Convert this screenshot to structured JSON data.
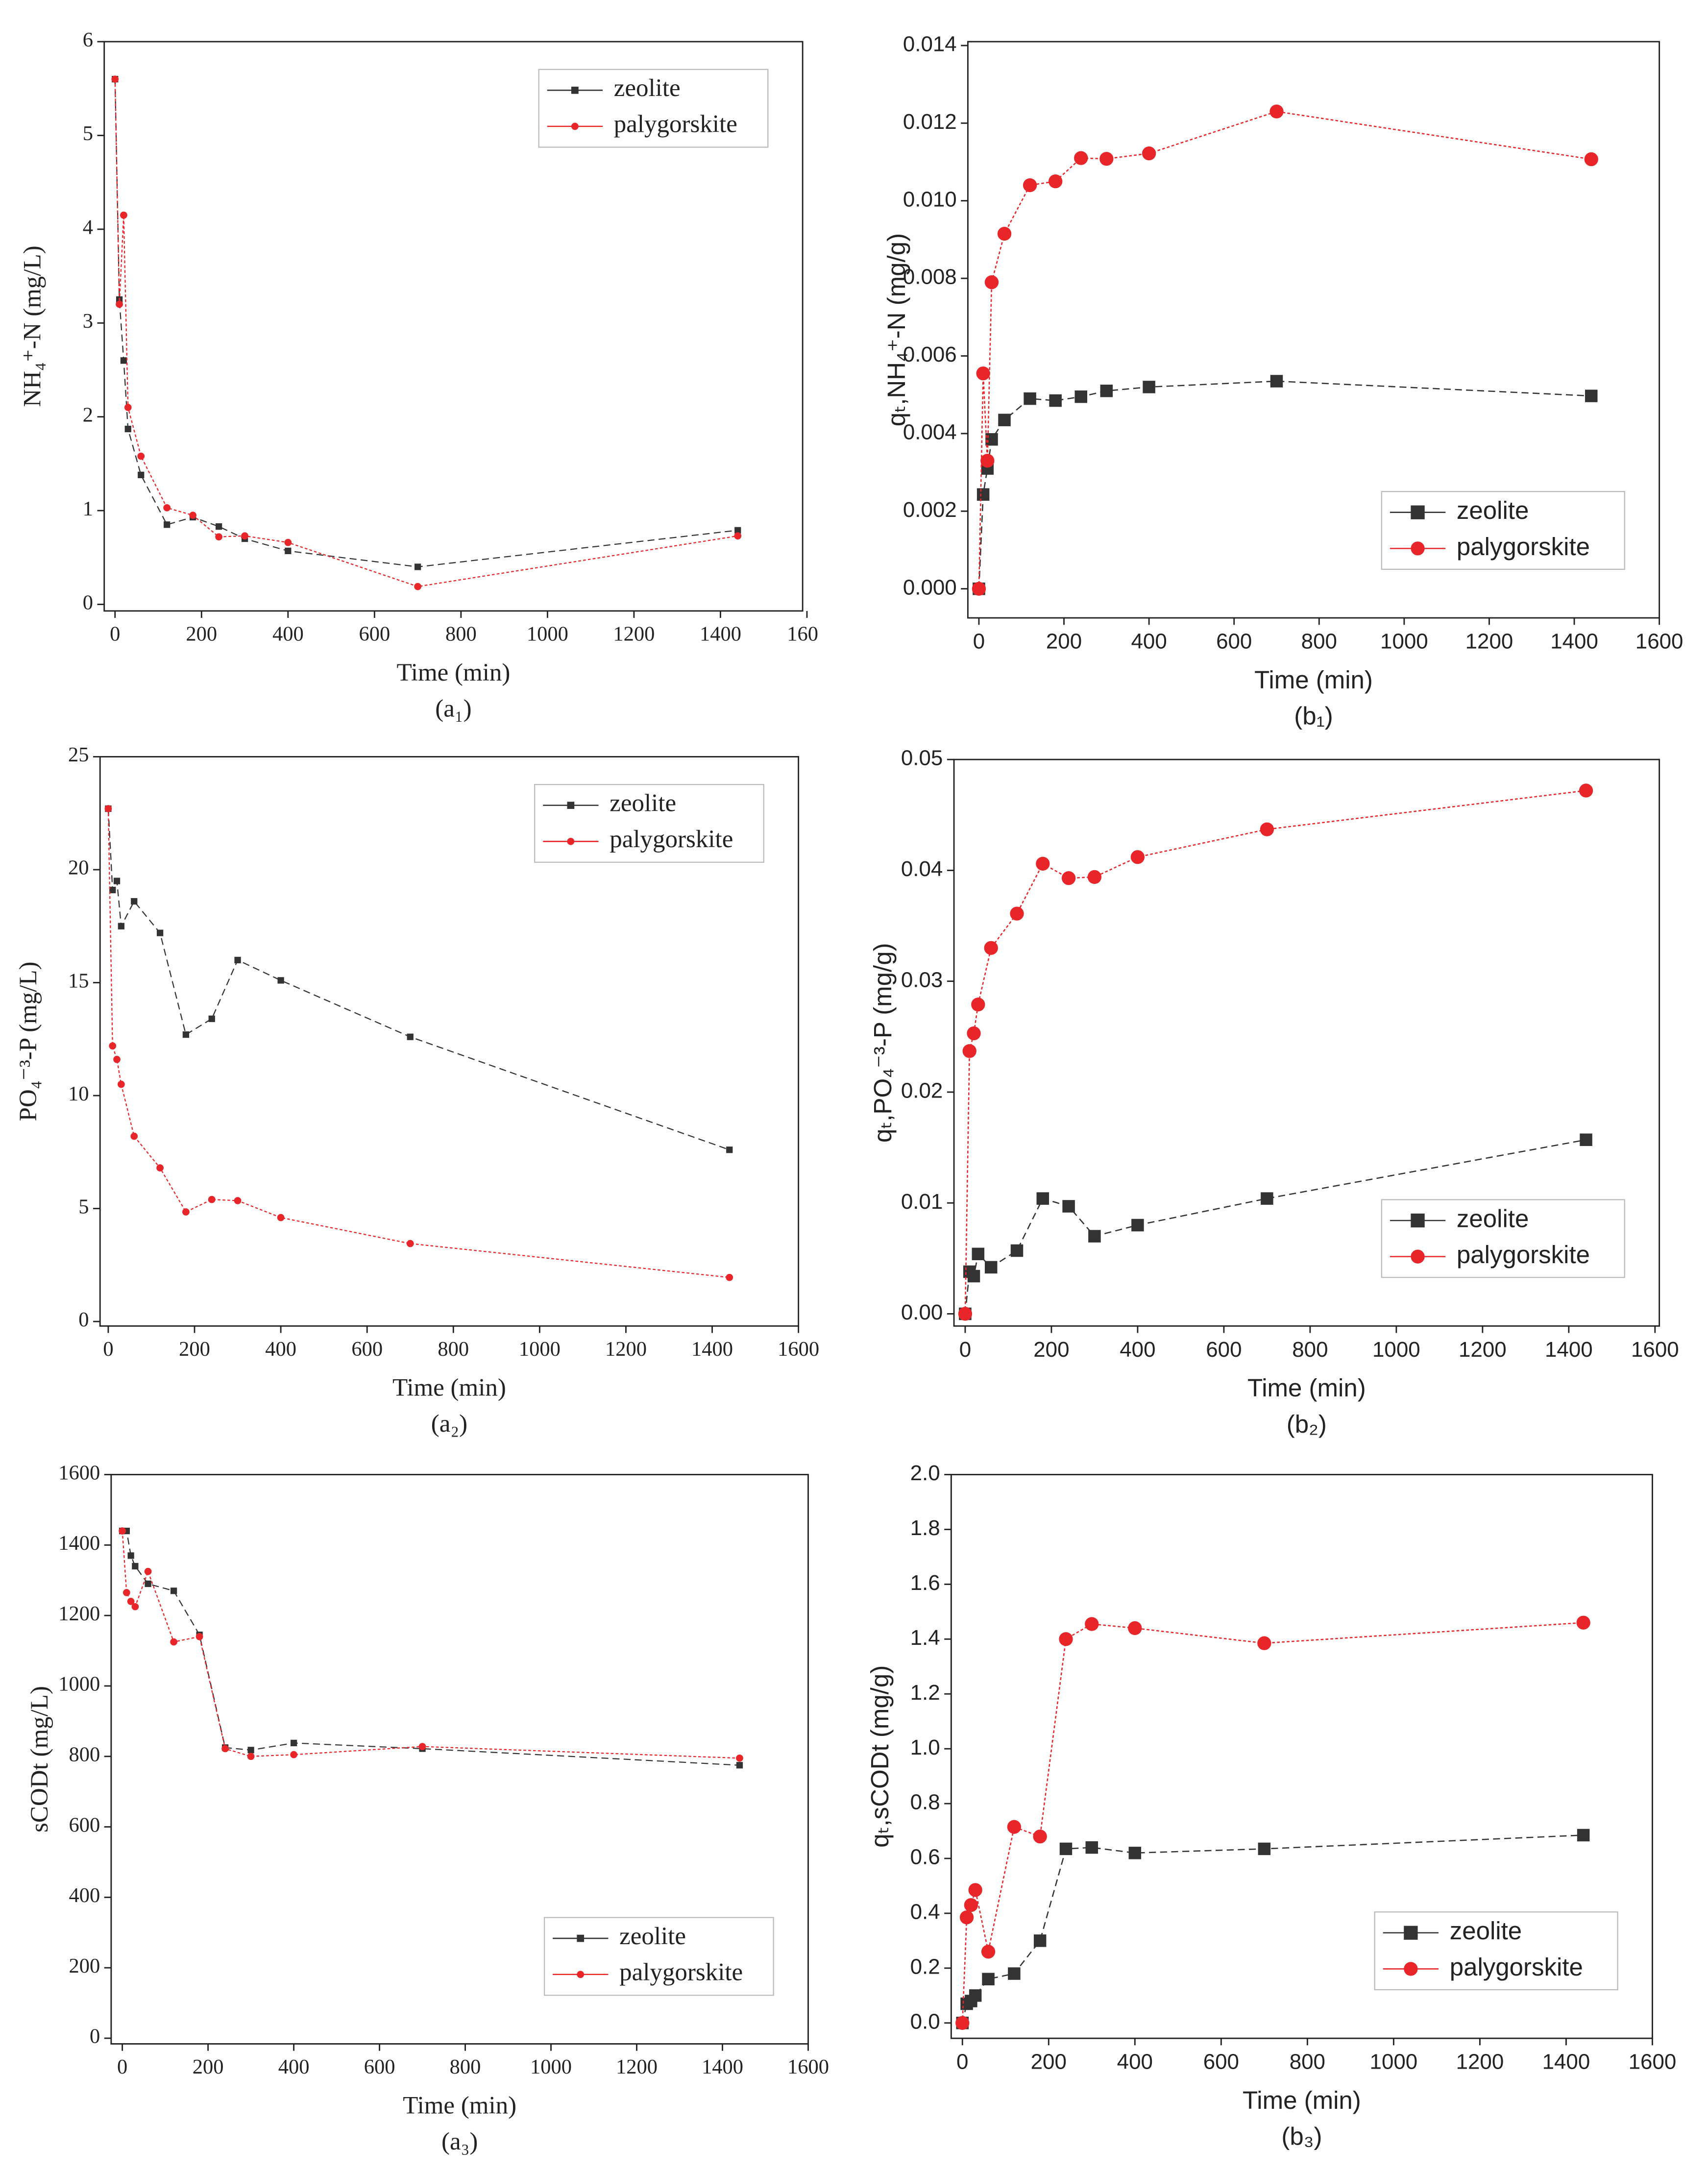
{
  "chart_data": [
    {
      "type": "line",
      "caption": "(a₁)",
      "xlabel": "Time (min)",
      "ylabel": "NH₄⁺-N (mg/L)",
      "x": [
        0,
        10,
        20,
        30,
        60,
        120,
        180,
        240,
        300,
        400,
        700,
        1440
      ],
      "xlim": [
        -25,
        1590
      ],
      "xticks": [
        0,
        200,
        400,
        600,
        800,
        1000,
        1200,
        1400,
        {
          "value": 1600,
          "label": "160"
        }
      ],
      "ylim": [
        -0.07,
        6
      ],
      "yticks": [
        0,
        1,
        2,
        3,
        4,
        5,
        6
      ],
      "legend": "upper right",
      "series": [
        {
          "name": "zeolite",
          "color": "#333333",
          "marker": "square",
          "values": [
            5.6,
            3.25,
            2.6,
            1.87,
            1.38,
            0.85,
            0.93,
            0.83,
            0.7,
            0.57,
            0.4,
            0.79
          ]
        },
        {
          "name": "palygorskite",
          "color": "#e8262a",
          "marker": "circle",
          "values": [
            5.6,
            3.2,
            4.15,
            2.1,
            1.58,
            1.03,
            0.95,
            0.72,
            0.73,
            0.66,
            0.19,
            0.73
          ]
        }
      ]
    },
    {
      "type": "line",
      "caption": "(b₁)",
      "xlabel": "Time (min)",
      "ylabel": "qₜ,NH₄⁺-N (mg/g)",
      "x": [
        0,
        10,
        20,
        30,
        60,
        120,
        180,
        240,
        300,
        400,
        700,
        1440
      ],
      "xlim": [
        -26,
        1600
      ],
      "xticks": [
        0,
        200,
        400,
        600,
        800,
        1000,
        1200,
        1400,
        1600
      ],
      "ylim": [
        -0.00075,
        0.0141
      ],
      "yticks": [
        {
          "value": 0,
          "label": "0.000"
        },
        0.002,
        0.004,
        0.006,
        0.008,
        {
          "value": 0.01,
          "label": "0.010"
        },
        {
          "value": 0.012,
          "label": "0.012"
        },
        {
          "value": 0.014,
          "label": "0.014"
        }
      ],
      "legend": "lower right",
      "series": [
        {
          "name": "zeolite",
          "color": "#333333",
          "marker": "square",
          "values": [
            0,
            0.00243,
            0.0031,
            0.00385,
            0.00435,
            0.0049,
            0.00485,
            0.00495,
            0.0051,
            0.0052,
            0.00535,
            0.00497
          ]
        },
        {
          "name": "palygorskite",
          "color": "#e8262a",
          "marker": "circle",
          "values": [
            0,
            0.00555,
            0.0033,
            0.0079,
            0.00915,
            0.0104,
            0.0105,
            0.0111,
            0.01108,
            0.01122,
            0.0123,
            0.01107
          ]
        }
      ]
    },
    {
      "type": "line",
      "caption": "(a₂)",
      "xlabel": "Time (min)",
      "ylabel": "PO₄⁻³-P (mg/L)",
      "x": [
        0,
        10,
        20,
        30,
        60,
        120,
        180,
        240,
        300,
        400,
        700,
        1440
      ],
      "xlim": [
        -19,
        1600
      ],
      "xticks": [
        0,
        200,
        400,
        600,
        800,
        1000,
        1200,
        1400,
        1600
      ],
      "ylim": [
        -0.2,
        25
      ],
      "yticks": [
        0,
        5,
        10,
        15,
        20,
        25
      ],
      "legend": "upper right",
      "series": [
        {
          "name": "zeolite",
          "color": "#333333",
          "marker": "square",
          "values": [
            22.7,
            19.1,
            19.5,
            17.5,
            18.6,
            17.2,
            12.7,
            13.4,
            16.0,
            15.1,
            12.6,
            7.6
          ]
        },
        {
          "name": "palygorskite",
          "color": "#e8262a",
          "marker": "circle",
          "values": [
            22.7,
            12.2,
            11.6,
            10.5,
            8.2,
            6.8,
            4.85,
            5.4,
            5.35,
            4.6,
            3.45,
            1.95
          ]
        }
      ]
    },
    {
      "type": "line",
      "caption": "(b₂)",
      "xlabel": "Time (min)",
      "ylabel": "qₜ,PO₄⁻³-P (mg/g)",
      "x": [
        0,
        10,
        20,
        30,
        60,
        120,
        180,
        240,
        300,
        400,
        700,
        1440
      ],
      "xlim": [
        -26,
        1610
      ],
      "xticks": [
        0,
        200,
        400,
        600,
        800,
        1000,
        1200,
        1400,
        1600
      ],
      "ylim": [
        -0.0011,
        0.05
      ],
      "yticks": [
        {
          "value": 0,
          "label": "0.00"
        },
        0.01,
        0.02,
        0.03,
        0.04,
        0.05
      ],
      "legend": "lower right",
      "series": [
        {
          "name": "zeolite",
          "color": "#333333",
          "marker": "square",
          "values": [
            0,
            0.0038,
            0.0034,
            0.0054,
            0.0042,
            0.0057,
            0.0104,
            0.0097,
            0.007,
            0.008,
            0.0104,
            0.0157
          ]
        },
        {
          "name": "palygorskite",
          "color": "#e8262a",
          "marker": "circle",
          "values": [
            0,
            0.0237,
            0.0253,
            0.0279,
            0.033,
            0.0361,
            0.0406,
            0.0393,
            0.0394,
            0.0412,
            0.0437,
            0.0472
          ]
        }
      ]
    },
    {
      "type": "line",
      "caption": "(a₃)",
      "xlabel": "Time (min)",
      "ylabel": "sCODt (mg/L)",
      "x": [
        0,
        10,
        20,
        30,
        60,
        120,
        180,
        240,
        300,
        400,
        700,
        1440
      ],
      "xlim": [
        -26,
        1600
      ],
      "xticks": [
        0,
        200,
        400,
        600,
        800,
        1000,
        1200,
        1400,
        1600
      ],
      "ylim": [
        -16,
        1600
      ],
      "yticks": [
        0,
        200,
        400,
        600,
        800,
        1000,
        1200,
        1400,
        1600
      ],
      "legend": "lower right",
      "series": [
        {
          "name": "zeolite",
          "color": "#333333",
          "marker": "square",
          "values": [
            1440,
            1440,
            1370,
            1340,
            1290,
            1270,
            1145,
            825,
            818,
            838,
            822,
            775
          ]
        },
        {
          "name": "palygorskite",
          "color": "#e8262a",
          "marker": "circle",
          "values": [
            1440,
            1265,
            1240,
            1225,
            1325,
            1125,
            1140,
            822,
            800,
            805,
            828,
            795
          ]
        }
      ]
    },
    {
      "type": "line",
      "caption": "(b₃)",
      "xlabel": "Time (min)",
      "ylabel": "qₜ,sCODt (mg/g)",
      "x": [
        0,
        10,
        20,
        30,
        60,
        120,
        180,
        240,
        300,
        400,
        700,
        1440
      ],
      "xlim": [
        -26,
        1600
      ],
      "xticks": [
        0,
        200,
        400,
        600,
        800,
        1000,
        1200,
        1400,
        1600
      ],
      "ylim": [
        -0.056,
        2.0
      ],
      "yticks": [
        {
          "value": 0,
          "label": "0.0"
        },
        0.2,
        0.4,
        0.6,
        0.8,
        {
          "value": 1,
          "label": "1.0"
        },
        1.2,
        1.4,
        1.6,
        1.8,
        {
          "value": 2,
          "label": "2.0"
        }
      ],
      "legend": "lower right",
      "series": [
        {
          "name": "zeolite",
          "color": "#333333",
          "marker": "square",
          "values": [
            0,
            0.07,
            0.08,
            0.1,
            0.16,
            0.18,
            0.3,
            0.635,
            0.64,
            0.62,
            0.635,
            0.685
          ]
        },
        {
          "name": "palygorskite",
          "color": "#e8262a",
          "marker": "circle",
          "values": [
            0,
            0.385,
            0.43,
            0.485,
            0.26,
            0.715,
            0.68,
            1.4,
            1.455,
            1.44,
            1.385,
            1.46
          ]
        }
      ]
    }
  ]
}
